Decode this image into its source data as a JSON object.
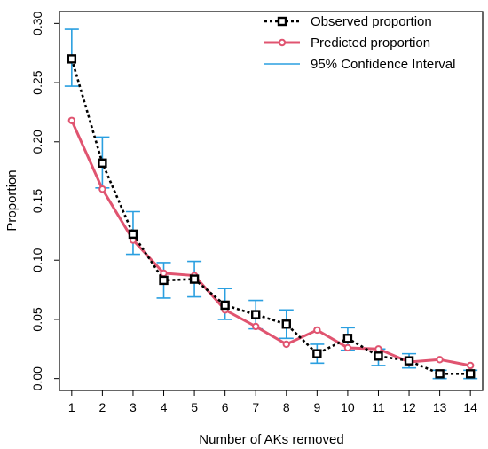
{
  "chart_data": {
    "type": "line",
    "title": "",
    "xlabel": "Number of AKs removed",
    "ylabel": "Proportion",
    "x": [
      1,
      2,
      3,
      4,
      5,
      6,
      7,
      8,
      9,
      10,
      11,
      12,
      13,
      14
    ],
    "xlim": [
      0.6,
      14.4
    ],
    "ylim": [
      -0.01,
      0.31
    ],
    "yticks": [
      0.0,
      0.05,
      0.1,
      0.15,
      0.2,
      0.25,
      0.3
    ],
    "ytick_labels": [
      "0.00",
      "0.05",
      "0.10",
      "0.15",
      "0.20",
      "0.25",
      "0.30"
    ],
    "xtick_labels": [
      "1",
      "2",
      "3",
      "4",
      "5",
      "6",
      "7",
      "8",
      "9",
      "10",
      "11",
      "12",
      "13",
      "14"
    ],
    "grid": false,
    "legend_position": "top-right",
    "series": [
      {
        "name": "Observed proportion",
        "color": "#000000",
        "style": "dotted",
        "marker": "square",
        "values": [
          0.27,
          0.182,
          0.122,
          0.083,
          0.084,
          0.062,
          0.054,
          0.046,
          0.021,
          0.034,
          0.019,
          0.015,
          0.004,
          0.004
        ]
      },
      {
        "name": "Predicted proportion",
        "color": "#e05470",
        "style": "solid",
        "marker": "circle",
        "values": [
          0.218,
          0.16,
          0.117,
          0.089,
          0.087,
          0.058,
          0.044,
          0.029,
          0.041,
          0.026,
          0.025,
          0.014,
          0.016,
          0.011
        ]
      },
      {
        "name": "95% Confidence Interval",
        "color": "#2a9fe0",
        "style": "errorbar",
        "lower": [
          0.247,
          0.161,
          0.105,
          0.068,
          0.069,
          0.05,
          0.042,
          0.034,
          0.013,
          0.024,
          0.011,
          0.009,
          0.0,
          0.0
        ],
        "upper": [
          0.295,
          0.204,
          0.141,
          0.098,
          0.099,
          0.076,
          0.066,
          0.058,
          0.029,
          0.043,
          0.025,
          0.021,
          0.007,
          0.007
        ]
      }
    ]
  }
}
